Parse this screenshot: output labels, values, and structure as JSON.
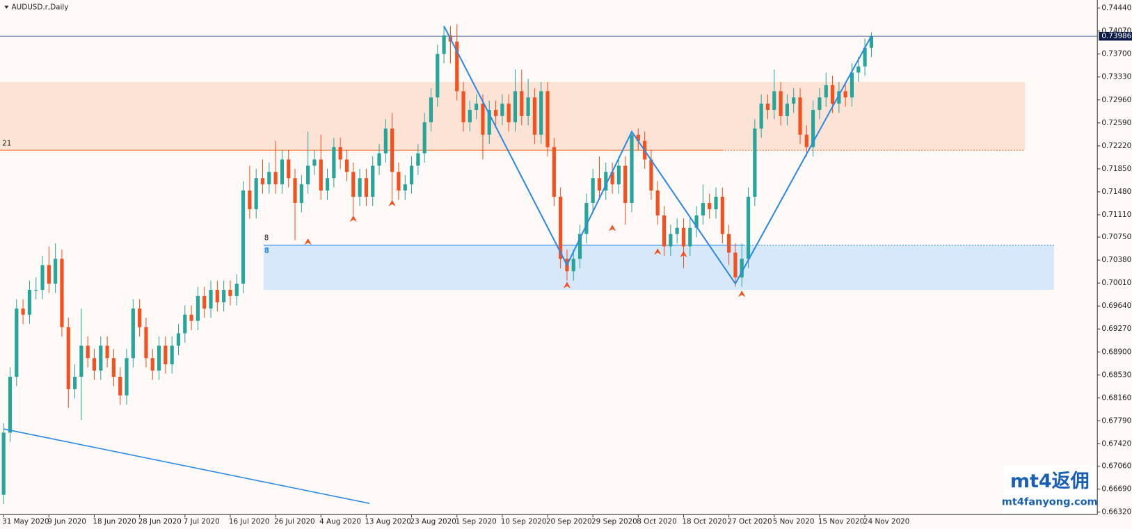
{
  "chart_data": {
    "type": "candlestick",
    "title": "AUDUSD.r,Daily",
    "bull_color": "#26a69a",
    "bear_color": "#f4511e",
    "ylim": [
      0.6628,
      0.7457
    ],
    "yticks": [
      {
        "value": 0.7444,
        "label": "0.74440"
      },
      {
        "value": 0.7407,
        "label": "0.74070"
      },
      {
        "value": 0.737,
        "label": "0.73700"
      },
      {
        "value": 0.7333,
        "label": "0.73330"
      },
      {
        "value": 0.7296,
        "label": "0.72960"
      },
      {
        "value": 0.7259,
        "label": "0.72590"
      },
      {
        "value": 0.7222,
        "label": "0.72220"
      },
      {
        "value": 0.7185,
        "label": "0.71850"
      },
      {
        "value": 0.7148,
        "label": "0.71480"
      },
      {
        "value": 0.7111,
        "label": "0.71110"
      },
      {
        "value": 0.7075,
        "label": "0.70750"
      },
      {
        "value": 0.7038,
        "label": "0.70380"
      },
      {
        "value": 0.7001,
        "label": "0.70010"
      },
      {
        "value": 0.6964,
        "label": "0.69640"
      },
      {
        "value": 0.6927,
        "label": "0.69270"
      },
      {
        "value": 0.689,
        "label": "0.68900"
      },
      {
        "value": 0.6853,
        "label": "0.68530"
      },
      {
        "value": 0.6816,
        "label": "0.68160"
      },
      {
        "value": 0.6779,
        "label": "0.67790"
      },
      {
        "value": 0.6742,
        "label": "0.67420"
      },
      {
        "value": 0.6706,
        "label": "0.67060"
      },
      {
        "value": 0.6669,
        "label": "0.66690"
      },
      {
        "value": 0.6632,
        "label": "0.66320"
      }
    ],
    "current_price": {
      "value": 0.73986,
      "label": "0.73986"
    },
    "categories": [
      "31 May 2020",
      null,
      null,
      null,
      null,
      null,
      null,
      "9 Jun 2020",
      null,
      null,
      null,
      null,
      null,
      null,
      "18 Jun 2020",
      null,
      null,
      null,
      null,
      null,
      null,
      "28 Jun 2020",
      null,
      null,
      null,
      null,
      null,
      null,
      "7 Jul 2020",
      null,
      null,
      null,
      null,
      null,
      null,
      "16 Jul 2020",
      null,
      null,
      null,
      null,
      null,
      null,
      "26 Jul 2020",
      null,
      null,
      null,
      null,
      null,
      null,
      "4 Aug 2020",
      null,
      null,
      null,
      null,
      null,
      null,
      "13 Aug 2020",
      null,
      null,
      null,
      null,
      null,
      null,
      "23 Aug 2020",
      null,
      null,
      null,
      null,
      null,
      null,
      "1 Sep 2020",
      null,
      null,
      null,
      null,
      null,
      null,
      "10 Sep 2020",
      null,
      null,
      null,
      null,
      null,
      null,
      "20 Sep 2020",
      null,
      null,
      null,
      null,
      null,
      null,
      "29 Sep 2020",
      null,
      null,
      null,
      null,
      null,
      null,
      "8 Oct 2020",
      null,
      null,
      null,
      null,
      null,
      null,
      "18 Oct 2020",
      null,
      null,
      null,
      null,
      null,
      null,
      "27 Oct 2020",
      null,
      null,
      null,
      null,
      null,
      null,
      "5 Nov 2020",
      null,
      null,
      null,
      null,
      null,
      null,
      "15 Nov 2020",
      null,
      null,
      null,
      null,
      null,
      null,
      "24 Nov 2020",
      null
    ],
    "ohlc": [
      [
        0.666,
        0.6775,
        0.6645,
        0.676
      ],
      [
        0.676,
        0.6865,
        0.6745,
        0.685
      ],
      [
        0.685,
        0.6975,
        0.6835,
        0.696
      ],
      [
        0.696,
        0.6975,
        0.6935,
        0.695
      ],
      [
        0.695,
        0.7005,
        0.6935,
        0.699
      ],
      [
        0.699,
        0.701,
        0.6975,
        0.699
      ],
      [
        0.699,
        0.7045,
        0.6975,
        0.703
      ],
      [
        0.703,
        0.706,
        0.6985,
        0.7
      ],
      [
        0.7,
        0.7065,
        0.6985,
        0.704
      ],
      [
        0.704,
        0.7055,
        0.6915,
        0.693
      ],
      [
        0.693,
        0.6945,
        0.68,
        0.683
      ],
      [
        0.683,
        0.687,
        0.6815,
        0.685
      ],
      [
        0.685,
        0.696,
        0.678,
        0.69
      ],
      [
        0.69,
        0.6915,
        0.6865,
        0.688
      ],
      [
        0.688,
        0.6895,
        0.6845,
        0.686
      ],
      [
        0.686,
        0.6915,
        0.6845,
        0.69
      ],
      [
        0.69,
        0.6915,
        0.6865,
        0.688
      ],
      [
        0.688,
        0.6895,
        0.6835,
        0.685
      ],
      [
        0.685,
        0.6865,
        0.6805,
        0.682
      ],
      [
        0.682,
        0.6895,
        0.6805,
        0.688
      ],
      [
        0.688,
        0.6975,
        0.6865,
        0.696
      ],
      [
        0.696,
        0.6975,
        0.6915,
        0.693
      ],
      [
        0.693,
        0.6945,
        0.6865,
        0.688
      ],
      [
        0.688,
        0.6895,
        0.6845,
        0.686
      ],
      [
        0.686,
        0.6915,
        0.6845,
        0.69
      ],
      [
        0.69,
        0.6915,
        0.6855,
        0.687
      ],
      [
        0.687,
        0.6915,
        0.6855,
        0.69
      ],
      [
        0.69,
        0.6935,
        0.6885,
        0.692
      ],
      [
        0.692,
        0.6965,
        0.6905,
        0.695
      ],
      [
        0.695,
        0.6965,
        0.6925,
        0.694
      ],
      [
        0.694,
        0.6995,
        0.6925,
        0.698
      ],
      [
        0.698,
        0.6995,
        0.6945,
        0.696
      ],
      [
        0.696,
        0.7005,
        0.6945,
        0.699
      ],
      [
        0.699,
        0.7005,
        0.6955,
        0.697
      ],
      [
        0.697,
        0.7005,
        0.6955,
        0.699
      ],
      [
        0.699,
        0.7005,
        0.6965,
        0.698
      ],
      [
        0.698,
        0.7015,
        0.6965,
        0.7
      ],
      [
        0.7,
        0.7165,
        0.6985,
        0.715
      ],
      [
        0.715,
        0.719,
        0.7105,
        0.712
      ],
      [
        0.712,
        0.7185,
        0.7105,
        0.717
      ],
      [
        0.717,
        0.72,
        0.7145,
        0.716
      ],
      [
        0.716,
        0.7195,
        0.7145,
        0.718
      ],
      [
        0.718,
        0.723,
        0.7145,
        0.716
      ],
      [
        0.716,
        0.7215,
        0.7145,
        0.72
      ],
      [
        0.72,
        0.7215,
        0.7155,
        0.717
      ],
      [
        0.717,
        0.7185,
        0.707,
        0.713
      ],
      [
        0.713,
        0.7175,
        0.7115,
        0.716
      ],
      [
        0.716,
        0.7245,
        0.7145,
        0.719
      ],
      [
        0.719,
        0.7215,
        0.7175,
        0.72
      ],
      [
        0.72,
        0.724,
        0.7135,
        0.715
      ],
      [
        0.715,
        0.7185,
        0.7135,
        0.717
      ],
      [
        0.717,
        0.7235,
        0.7155,
        0.722
      ],
      [
        0.722,
        0.7235,
        0.7185,
        0.72
      ],
      [
        0.72,
        0.7215,
        0.7165,
        0.718
      ],
      [
        0.718,
        0.7195,
        0.711,
        0.714
      ],
      [
        0.714,
        0.7185,
        0.7125,
        0.717
      ],
      [
        0.717,
        0.7185,
        0.7125,
        0.714
      ],
      [
        0.714,
        0.7205,
        0.7125,
        0.719
      ],
      [
        0.719,
        0.7225,
        0.7175,
        0.721
      ],
      [
        0.721,
        0.7265,
        0.7195,
        0.725
      ],
      [
        0.725,
        0.7275,
        0.7135,
        0.718
      ],
      [
        0.718,
        0.7195,
        0.7135,
        0.715
      ],
      [
        0.715,
        0.7175,
        0.7135,
        0.716
      ],
      [
        0.716,
        0.7205,
        0.7145,
        0.719
      ],
      [
        0.719,
        0.7225,
        0.7175,
        0.721
      ],
      [
        0.721,
        0.7275,
        0.7195,
        0.726
      ],
      [
        0.726,
        0.7315,
        0.7245,
        0.73
      ],
      [
        0.73,
        0.7385,
        0.7285,
        0.737
      ],
      [
        0.737,
        0.7415,
        0.7355,
        0.74
      ],
      [
        0.74,
        0.7415,
        0.7355,
        0.739
      ],
      [
        0.739,
        0.7418,
        0.7295,
        0.731
      ],
      [
        0.731,
        0.7325,
        0.7245,
        0.726
      ],
      [
        0.726,
        0.7295,
        0.7245,
        0.728
      ],
      [
        0.728,
        0.7305,
        0.7265,
        0.729
      ],
      [
        0.729,
        0.7305,
        0.72,
        0.724
      ],
      [
        0.724,
        0.7295,
        0.7225,
        0.728
      ],
      [
        0.728,
        0.7295,
        0.7255,
        0.727
      ],
      [
        0.727,
        0.7305,
        0.7255,
        0.729
      ],
      [
        0.729,
        0.7305,
        0.7245,
        0.726
      ],
      [
        0.726,
        0.7345,
        0.7245,
        0.731
      ],
      [
        0.731,
        0.7345,
        0.7255,
        0.727
      ],
      [
        0.727,
        0.733,
        0.7255,
        0.73
      ],
      [
        0.73,
        0.7315,
        0.7225,
        0.724
      ],
      [
        0.724,
        0.7325,
        0.7225,
        0.731
      ],
      [
        0.731,
        0.7325,
        0.7205,
        0.722
      ],
      [
        0.722,
        0.7235,
        0.7125,
        0.714
      ],
      [
        0.714,
        0.7155,
        0.7025,
        0.704
      ],
      [
        0.704,
        0.7055,
        0.7005,
        0.702
      ],
      [
        0.702,
        0.7055,
        0.7005,
        0.704
      ],
      [
        0.704,
        0.7095,
        0.7025,
        0.708
      ],
      [
        0.708,
        0.7145,
        0.7065,
        0.713
      ],
      [
        0.713,
        0.7185,
        0.7115,
        0.717
      ],
      [
        0.717,
        0.7205,
        0.7135,
        0.715
      ],
      [
        0.715,
        0.7195,
        0.7135,
        0.718
      ],
      [
        0.718,
        0.7195,
        0.7145,
        0.716
      ],
      [
        0.716,
        0.7205,
        0.7145,
        0.719
      ],
      [
        0.719,
        0.7205,
        0.7095,
        0.713
      ],
      [
        0.713,
        0.7245,
        0.7115,
        0.724
      ],
      [
        0.724,
        0.725,
        0.7215,
        0.723
      ],
      [
        0.723,
        0.7245,
        0.7185,
        0.72
      ],
      [
        0.72,
        0.7215,
        0.7135,
        0.715
      ],
      [
        0.715,
        0.7165,
        0.7095,
        0.711
      ],
      [
        0.711,
        0.7125,
        0.7045,
        0.706
      ],
      [
        0.706,
        0.7095,
        0.7045,
        0.708
      ],
      [
        0.708,
        0.7105,
        0.7065,
        0.709
      ],
      [
        0.709,
        0.7105,
        0.7025,
        0.706
      ],
      [
        0.706,
        0.7105,
        0.7045,
        0.709
      ],
      [
        0.709,
        0.7125,
        0.7075,
        0.711
      ],
      [
        0.711,
        0.716,
        0.7095,
        0.713
      ],
      [
        0.713,
        0.7145,
        0.7105,
        0.712
      ],
      [
        0.712,
        0.7155,
        0.7105,
        0.714
      ],
      [
        0.714,
        0.7155,
        0.7065,
        0.708
      ],
      [
        0.708,
        0.7095,
        0.703,
        0.705
      ],
      [
        0.705,
        0.7065,
        0.6995,
        0.701
      ],
      [
        0.701,
        0.7065,
        0.6995,
        0.704
      ],
      [
        0.704,
        0.7155,
        0.7025,
        0.714
      ],
      [
        0.714,
        0.7265,
        0.7125,
        0.725
      ],
      [
        0.725,
        0.7305,
        0.7235,
        0.729
      ],
      [
        0.729,
        0.7305,
        0.7265,
        0.728
      ],
      [
        0.728,
        0.7345,
        0.7265,
        0.731
      ],
      [
        0.731,
        0.7325,
        0.7255,
        0.727
      ],
      [
        0.727,
        0.7305,
        0.7255,
        0.729
      ],
      [
        0.729,
        0.7315,
        0.7275,
        0.73
      ],
      [
        0.73,
        0.7315,
        0.7225,
        0.724
      ],
      [
        0.724,
        0.7255,
        0.7205,
        0.722
      ],
      [
        0.722,
        0.7295,
        0.7205,
        0.728
      ],
      [
        0.728,
        0.7315,
        0.7265,
        0.73
      ],
      [
        0.73,
        0.734,
        0.7285,
        0.732
      ],
      [
        0.732,
        0.7335,
        0.7275,
        0.729
      ],
      [
        0.729,
        0.7325,
        0.7275,
        0.731
      ],
      [
        0.731,
        0.7325,
        0.7285,
        0.73
      ],
      [
        0.73,
        0.7355,
        0.7285,
        0.734
      ],
      [
        0.734,
        0.7365,
        0.7325,
        0.735
      ],
      [
        0.735,
        0.7395,
        0.7335,
        0.738
      ],
      [
        0.738,
        0.7405,
        0.7365,
        0.73986
      ]
    ],
    "zones": [
      {
        "from": 0.7215,
        "to": 0.7325,
        "color": "#fde3d6",
        "line_color": "#f26a1b",
        "label": "21"
      },
      {
        "from": 0.699,
        "to": 0.7062,
        "color": "#d6e8f9",
        "line_color": "#2d8ae6",
        "label": "8",
        "label_top": "8"
      }
    ],
    "zigzag": {
      "color": "#2d8ae6",
      "points": [
        [
          68,
          0.7415
        ],
        [
          87,
          0.703
        ],
        [
          97,
          0.7245
        ],
        [
          113,
          0.7
        ],
        [
          134,
          0.7399
        ]
      ]
    },
    "trendline": {
      "color": "#2d8ae6",
      "points": [
        [
          0,
          0.6766
        ],
        [
          56.5,
          0.6646
        ]
      ]
    },
    "fractals": {
      "color": "#f4511e",
      "points": [
        [
          47,
          0.7066
        ],
        [
          54,
          0.7103
        ],
        [
          60,
          0.7128
        ],
        [
          87,
          0.6996
        ],
        [
          94,
          0.7088
        ],
        [
          101,
          0.705
        ],
        [
          105,
          0.7046
        ],
        [
          114,
          0.6982
        ]
      ]
    },
    "watermark": {
      "brand": "mt4返佣",
      "site": "mt4fanyong.com"
    }
  }
}
